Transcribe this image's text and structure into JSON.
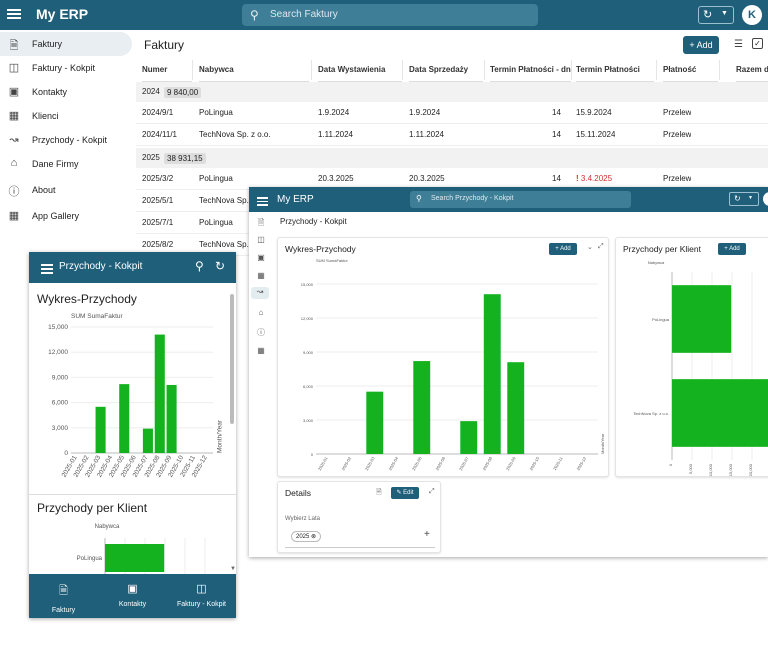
{
  "app": {
    "title": "My ERP",
    "search_placeholder": "Search Faktury",
    "avatar_initial": "K",
    "colors": {
      "primary": "#1f5f7a",
      "bar": "#14b21f",
      "overdue": "#d32f2f"
    }
  },
  "sidebar": {
    "items": [
      {
        "label": "Faktury",
        "icon": "document-icon"
      },
      {
        "label": "Faktury - Kokpit",
        "icon": "book-icon"
      },
      {
        "label": "Kontakty",
        "icon": "contact-icon"
      },
      {
        "label": "Klienci",
        "icon": "building-icon"
      },
      {
        "label": "Przychody - Kokpit",
        "icon": "trend-icon"
      },
      {
        "label": "Dane Firmy",
        "icon": "home-icon"
      },
      {
        "label": "About",
        "icon": "info-icon"
      },
      {
        "label": "App Gallery",
        "icon": "grid-icon"
      }
    ]
  },
  "faktury": {
    "title": "Faktury",
    "add_label": "Add",
    "columns": [
      "Numer",
      "Nabywca",
      "Data Wystawienia",
      "Data Sprzedaży",
      "Termin Płatności - dn...",
      "Termin Płatności",
      "Płatność",
      "Razem do"
    ],
    "groups": [
      {
        "year": "2024",
        "total": "9 840,00",
        "rows": [
          {
            "numer": "2024/9/1",
            "nabywca": "PoLingua",
            "wystawienia": "1.9.2024",
            "sprzedazy": "1.9.2024",
            "dni": "14",
            "termin": "15.9.2024",
            "platnosc": "Przelew",
            "overdue": false
          },
          {
            "numer": "2024/11/1",
            "nabywca": "TechNova Sp. z o.o.",
            "wystawienia": "1.11.2024",
            "sprzedazy": "1.11.2024",
            "dni": "14",
            "termin": "15.11.2024",
            "platnosc": "Przelew",
            "overdue": false
          }
        ]
      },
      {
        "year": "2025",
        "total": "38 931,15",
        "rows": [
          {
            "numer": "2025/3/2",
            "nabywca": "PoLingua",
            "wystawienia": "20.3.2025",
            "sprzedazy": "20.3.2025",
            "dni": "14",
            "termin": "3.4.2025",
            "platnosc": "Przelew",
            "overdue": true
          },
          {
            "numer": "2025/5/1",
            "nabywca": "TechNova Sp. z o.o."
          },
          {
            "numer": "2025/7/1",
            "nabywca": "PoLingua"
          },
          {
            "numer": "2025/8/2",
            "nabywca": "TechNova Sp. z o.o."
          }
        ]
      }
    ],
    "overdue_icon": "!"
  },
  "mobile": {
    "title": "Przychody - Kokpit",
    "chart1_title": "Wykres-Przychody",
    "chart2_title": "Przychody per Klient",
    "tabs": [
      {
        "label": "Faktury",
        "icon": "document-icon"
      },
      {
        "label": "Kontakty",
        "icon": "contact-icon"
      },
      {
        "label": "Faktury - Kokpit",
        "icon": "book-icon"
      }
    ]
  },
  "desktop": {
    "title": "My ERP",
    "search_placeholder": "Search Przychody - Kokpit",
    "page_title": "Przychody - Kokpit",
    "add_label": "Add",
    "details_title": "Details",
    "edit_label": "Edit",
    "filter_label": "Wybierz Lata",
    "filter_chip": "2025"
  },
  "chart_data": [
    {
      "type": "bar",
      "title": "Wykres-Przychody",
      "ylabel": "SUM SumaFaktur",
      "xlabel": "Month/Year",
      "categories": [
        "2025-01",
        "2025-02",
        "2025-03",
        "2025-04",
        "2025-05",
        "2025-06",
        "2025-07",
        "2025-08",
        "2025-09",
        "2025-10",
        "2025-11",
        "2025-12"
      ],
      "values": [
        0,
        0,
        5500,
        0,
        8200,
        0,
        2900,
        14100,
        8100,
        0,
        0,
        0
      ],
      "yticks": [
        "0",
        "3,000",
        "6,000",
        "9,000",
        "12,000",
        "15,000"
      ],
      "ylim": [
        0,
        15000
      ]
    },
    {
      "type": "bar",
      "orientation": "horizontal",
      "title": "Przychody per Klient",
      "ylabel": "Nabywca",
      "categories": [
        "PoLingua",
        "TechNova Sp. z o.o."
      ],
      "values": [
        14800,
        24100
      ],
      "xticks": [
        "0",
        "5,000",
        "10,000",
        "15,000",
        "20,000",
        "25,000"
      ],
      "xlim": [
        0,
        25000
      ]
    }
  ]
}
